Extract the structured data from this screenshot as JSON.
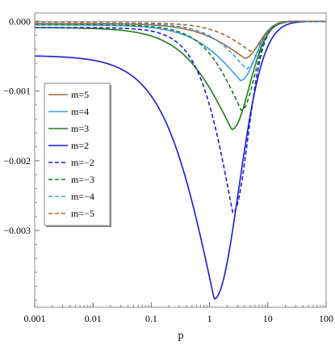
{
  "chart_data": {
    "type": "line",
    "title": "",
    "xlabel": "p",
    "ylabel": "",
    "xscale": "log",
    "xlim": [
      0.001,
      100
    ],
    "ylim": [
      -0.0041,
      0.00012
    ],
    "x_ticks": [
      {
        "value": 0.001,
        "label": "0.001"
      },
      {
        "value": 0.01,
        "label": "0.01"
      },
      {
        "value": 0.1,
        "label": "0.1"
      },
      {
        "value": 1,
        "label": "1"
      },
      {
        "value": 10,
        "label": "10"
      },
      {
        "value": 100,
        "label": "100"
      }
    ],
    "y_ticks": [
      {
        "value": 0.0,
        "label": "0.000"
      },
      {
        "value": -0.001,
        "label": "−0.001"
      },
      {
        "value": -0.002,
        "label": "−0.002"
      },
      {
        "value": -0.003,
        "label": "−0.003"
      }
    ],
    "grid": false,
    "legend_position": "left",
    "series": [
      {
        "name": "m=5",
        "color": "#a0693a",
        "dash": "solid",
        "plateau": -3e-05,
        "min": -0.00053,
        "x_min": 4.0,
        "w_left": 0.42,
        "w_right": 0.24
      },
      {
        "name": "m=4",
        "color": "#3a9ee6",
        "dash": "solid",
        "plateau": -5e-05,
        "min": -0.00085,
        "x_min": 3.4,
        "w_left": 0.42,
        "w_right": 0.25
      },
      {
        "name": "m=3",
        "color": "#1e7a1e",
        "dash": "solid",
        "plateau": -9e-05,
        "min": -0.00155,
        "x_min": 2.4,
        "w_left": 0.44,
        "w_right": 0.3
      },
      {
        "name": "m=2",
        "color": "#1a1ad6",
        "dash": "solid",
        "plateau": -0.00049,
        "min": -0.00398,
        "x_min": 1.2,
        "w_left": 0.45,
        "w_right": 0.42
      },
      {
        "name": "m=−2",
        "color": "#1a1ad6",
        "dash": "dashed",
        "plateau": -9e-05,
        "min": -0.00275,
        "x_min": 2.5,
        "w_left": 0.3,
        "w_right": 0.26
      },
      {
        "name": "m=−3",
        "color": "#1e7a1e",
        "dash": "dashed",
        "plateau": -5e-05,
        "min": -0.00128,
        "x_min": 3.5,
        "w_left": 0.34,
        "w_right": 0.23
      },
      {
        "name": "m=−4",
        "color": "#3a9ee6",
        "dash": "dashed",
        "plateau": -3e-05,
        "min": -0.00068,
        "x_min": 4.2,
        "w_left": 0.34,
        "w_right": 0.22
      },
      {
        "name": "m=−5",
        "color": "#a0693a",
        "dash": "dashed",
        "plateau": -2e-05,
        "min": -0.00043,
        "x_min": 5.0,
        "w_left": 0.34,
        "w_right": 0.21
      }
    ]
  }
}
